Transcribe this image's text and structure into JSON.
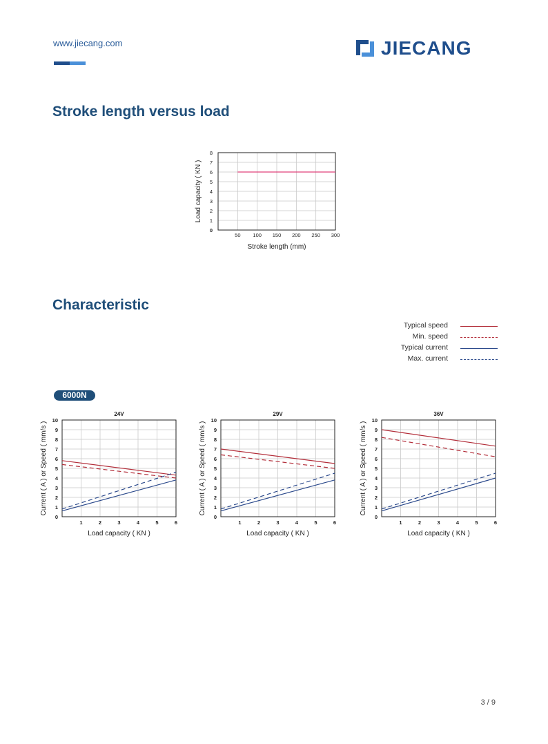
{
  "header": {
    "url": "www.jiecang.com",
    "logo_text": "JIECANG",
    "colors": {
      "brand_dark": "#1f4e8c",
      "brand_light": "#4a90d9",
      "heading": "#1f4e79"
    }
  },
  "sections": {
    "stroke_title": "Stroke length versus load",
    "characteristic_title": "Characteristic"
  },
  "legend": [
    {
      "label": "Typical speed",
      "color": "#b32e3a",
      "dash": false
    },
    {
      "label": "Min. speed",
      "color": "#b32e3a",
      "dash": true
    },
    {
      "label": "Typical current",
      "color": "#2c4a8c",
      "dash": false
    },
    {
      "label": "Max. current",
      "color": "#2c4a8c",
      "dash": true
    }
  ],
  "badge": "6000N",
  "chart_data": [
    {
      "type": "line",
      "xlabel": "Stroke length (mm)",
      "ylabel": "Load capacity ( KN )",
      "x_ticks": [
        50,
        100,
        150,
        200,
        250,
        300
      ],
      "y_ticks": [
        0,
        1,
        2,
        3,
        4,
        5,
        6,
        7,
        8
      ],
      "xlim": [
        0,
        300
      ],
      "ylim": [
        0,
        8
      ],
      "grid": true,
      "series": [
        {
          "x": [
            50,
            300
          ],
          "y": [
            6,
            6
          ],
          "color": "#e0407a"
        }
      ]
    },
    {
      "type": "line",
      "title": "24V",
      "xlabel": "Load capacity ( KN )",
      "ylabel": "Current ( A ) or Speed ( mm/s )",
      "x_ticks": [
        1,
        2,
        3,
        4,
        5,
        6
      ],
      "y_ticks": [
        0,
        1,
        2,
        3,
        4,
        5,
        6,
        7,
        8,
        9,
        10
      ],
      "xlim": [
        0,
        6
      ],
      "ylim": [
        0,
        10
      ],
      "grid": true,
      "series": [
        {
          "x": [
            0,
            6
          ],
          "y": [
            5.8,
            4.3
          ]
        },
        {
          "x": [
            0,
            6
          ],
          "y": [
            5.4,
            4.0
          ]
        },
        {
          "x": [
            0,
            6
          ],
          "y": [
            0.6,
            3.8
          ]
        },
        {
          "x": [
            0,
            6
          ],
          "y": [
            0.8,
            4.6
          ]
        }
      ]
    },
    {
      "type": "line",
      "title": "29V",
      "xlabel": "Load capacity ( KN )",
      "ylabel": "Current ( A ) or Speed ( mm/s )",
      "x_ticks": [
        1,
        2,
        3,
        4,
        5,
        6
      ],
      "y_ticks": [
        0,
        1,
        2,
        3,
        4,
        5,
        6,
        7,
        8,
        9,
        10
      ],
      "xlim": [
        0,
        6
      ],
      "ylim": [
        0,
        10
      ],
      "grid": true,
      "series": [
        {
          "x": [
            0,
            6
          ],
          "y": [
            7.0,
            5.5
          ]
        },
        {
          "x": [
            0,
            6
          ],
          "y": [
            6.4,
            5.0
          ]
        },
        {
          "x": [
            0,
            6
          ],
          "y": [
            0.6,
            3.8
          ]
        },
        {
          "x": [
            0,
            6
          ],
          "y": [
            0.8,
            4.5
          ]
        }
      ]
    },
    {
      "type": "line",
      "title": "36V",
      "xlabel": "Load capacity ( KN )",
      "ylabel": "Current ( A ) or Speed ( mm/s )",
      "x_ticks": [
        1,
        2,
        3,
        4,
        5,
        6
      ],
      "y_ticks": [
        0,
        1,
        2,
        3,
        4,
        5,
        6,
        7,
        8,
        9,
        10
      ],
      "xlim": [
        0,
        6
      ],
      "ylim": [
        0,
        10
      ],
      "grid": true,
      "series": [
        {
          "x": [
            0,
            6
          ],
          "y": [
            9.0,
            7.3
          ]
        },
        {
          "x": [
            0,
            6
          ],
          "y": [
            8.2,
            6.2
          ]
        },
        {
          "x": [
            0,
            6
          ],
          "y": [
            0.6,
            4.0
          ]
        },
        {
          "x": [
            0,
            6
          ],
          "y": [
            0.8,
            4.5
          ]
        }
      ]
    }
  ],
  "page_number": "3 / 9"
}
